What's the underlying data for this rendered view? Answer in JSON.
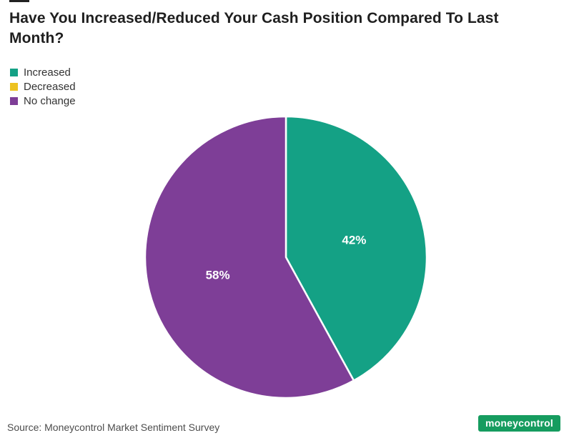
{
  "title": "Have You Increased/Reduced Your Cash Position Compared To Last Month?",
  "source": "Source: Moneycontrol Market Sentiment Survey",
  "logo_text": "moneycontrol",
  "colors": {
    "logo_bg": "#169c5f",
    "title_text": "#1f1f1f",
    "slice_label_text": "#ffffff"
  },
  "chart_data": {
    "type": "pie",
    "title": "Have You Increased/Reduced Your Cash Position Compared To Last Month?",
    "legend_position": "top-left",
    "direction": "clockwise",
    "start_angle_deg": 0,
    "slices": [
      {
        "label": "Increased",
        "value": 42,
        "color": "#14A185",
        "data_label": "42%"
      },
      {
        "label": "Decreased",
        "value": 0,
        "color": "#EDC220",
        "data_label": ""
      },
      {
        "label": "No change",
        "value": 58,
        "color": "#7E3E97",
        "data_label": "58%"
      }
    ]
  }
}
